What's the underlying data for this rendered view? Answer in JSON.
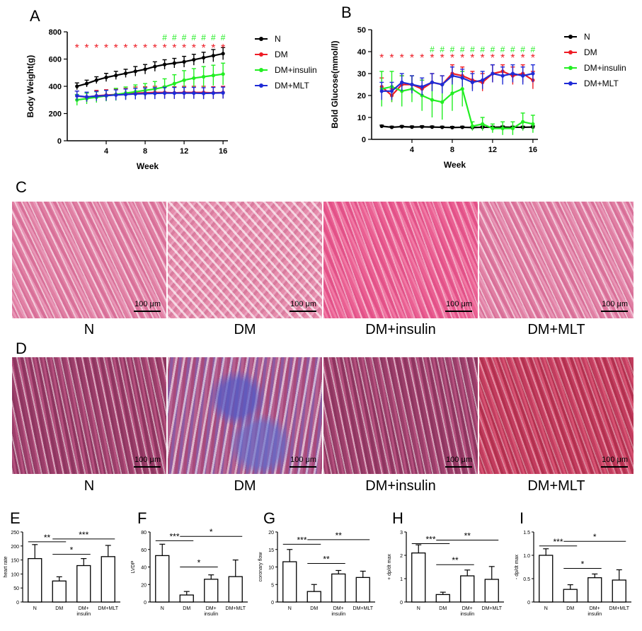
{
  "panels": {
    "A": "A",
    "B": "B",
    "C": "C",
    "D": "D",
    "E": "E",
    "F": "F",
    "G": "G",
    "H": "H",
    "I": "I"
  },
  "groups": [
    "N",
    "DM",
    "DM+insulin",
    "DM+MLT"
  ],
  "colors": {
    "N": "#000000",
    "DM": "#ee1c25",
    "DM+insulin": "#22ee22",
    "DM+MLT": "#1f2bd6"
  },
  "scale_bar_label": "100 μm",
  "chart_data": [
    {
      "type": "line",
      "id": "A",
      "xlabel": "Week",
      "ylabel": "Body Weight(g)",
      "xlim": [
        0,
        16.5
      ],
      "ylim": [
        0,
        800
      ],
      "xticks": [
        4,
        8,
        12,
        16
      ],
      "yticks": [
        0,
        200,
        400,
        600,
        800
      ],
      "x": [
        1,
        2,
        3,
        4,
        5,
        6,
        7,
        8,
        9,
        10,
        11,
        12,
        13,
        14,
        15,
        16
      ],
      "series": [
        {
          "name": "N",
          "values": [
            400,
            420,
            445,
            465,
            480,
            495,
            510,
            525,
            545,
            560,
            570,
            580,
            595,
            610,
            625,
            640
          ],
          "err": [
            25,
            25,
            25,
            30,
            30,
            30,
            35,
            35,
            35,
            35,
            35,
            40,
            40,
            40,
            45,
            45
          ]
        },
        {
          "name": "DM",
          "values": [
            330,
            320,
            330,
            335,
            340,
            345,
            350,
            352,
            355,
            355,
            352,
            355,
            355,
            355,
            352,
            355
          ],
          "err": [
            35,
            35,
            40,
            40,
            40,
            40,
            45,
            45,
            45,
            45,
            45,
            45,
            45,
            45,
            45,
            45
          ]
        },
        {
          "name": "DM+insulin",
          "values": [
            300,
            310,
            320,
            330,
            340,
            350,
            360,
            370,
            380,
            395,
            420,
            445,
            460,
            470,
            480,
            490
          ],
          "err": [
            40,
            40,
            40,
            40,
            45,
            45,
            50,
            50,
            55,
            60,
            65,
            70,
            70,
            75,
            75,
            80
          ]
        },
        {
          "name": "DM+MLT",
          "values": [
            330,
            322,
            328,
            332,
            336,
            340,
            344,
            346,
            348,
            350,
            350,
            350,
            350,
            348,
            350,
            352
          ],
          "err": [
            35,
            35,
            35,
            38,
            38,
            40,
            40,
            42,
            42,
            42,
            42,
            42,
            42,
            42,
            42,
            42
          ]
        }
      ],
      "annotations": {
        "stars": {
          "symbol": "*",
          "color": "#ee1c25",
          "weeks": [
            1,
            2,
            3,
            4,
            5,
            6,
            7,
            8,
            9,
            10,
            11,
            12,
            13,
            14,
            15,
            16
          ]
        },
        "hashes": {
          "symbol": "#",
          "color": "#22ee22",
          "weeks": [
            10,
            11,
            12,
            13,
            14,
            15,
            16
          ]
        }
      },
      "legend": "right"
    },
    {
      "type": "line",
      "id": "B",
      "xlabel": "Week",
      "ylabel": "Bold Glucose(mmol/l)",
      "xlim": [
        0,
        16.5
      ],
      "ylim": [
        0,
        50
      ],
      "xticks": [
        4,
        8,
        12,
        16
      ],
      "yticks": [
        0,
        10,
        20,
        30,
        40,
        50
      ],
      "x": [
        1,
        2,
        3,
        4,
        5,
        6,
        7,
        8,
        9,
        10,
        11,
        12,
        13,
        14,
        15,
        16
      ],
      "series": [
        {
          "name": "N",
          "values": [
            6,
            5.5,
            5.8,
            5.6,
            5.7,
            5.6,
            5.5,
            5.4,
            5.5,
            5.4,
            5.5,
            5.5,
            5.6,
            5.5,
            5.5,
            5.6
          ],
          "err": [
            0.5,
            0.5,
            0.5,
            0.5,
            0.5,
            0.5,
            0.5,
            0.5,
            0.5,
            0.5,
            0.5,
            0.5,
            0.5,
            0.5,
            0.5,
            0.5
          ]
        },
        {
          "name": "DM",
          "values": [
            24,
            20,
            25,
            25,
            23,
            26,
            25,
            30,
            29,
            27,
            26,
            30,
            31,
            29,
            30,
            27
          ],
          "err": [
            4,
            3,
            4,
            4,
            4,
            4,
            4,
            4,
            4,
            4,
            4,
            4,
            3,
            4,
            4,
            4
          ]
        },
        {
          "name": "DM+insulin",
          "values": [
            23,
            24,
            22,
            23,
            20,
            18,
            17,
            21,
            23,
            6,
            7,
            5,
            5,
            5,
            8,
            7
          ],
          "err": [
            8,
            7,
            7,
            6,
            7,
            8,
            8,
            8,
            8,
            2,
            3,
            2,
            3,
            3,
            4,
            4
          ]
        },
        {
          "name": "DM+MLT",
          "values": [
            22,
            22,
            26,
            25,
            24,
            26,
            25,
            29,
            28,
            26,
            27,
            30,
            29,
            30,
            29,
            30
          ],
          "err": [
            4,
            4,
            4,
            4,
            4,
            4,
            4,
            4,
            4,
            4,
            4,
            4,
            4,
            4,
            4,
            4
          ]
        }
      ],
      "annotations": {
        "stars": {
          "symbol": "*",
          "color": "#ee1c25",
          "weeks": [
            1,
            2,
            3,
            4,
            5,
            6,
            7,
            8,
            9,
            10,
            11,
            12,
            13,
            14,
            15,
            16
          ]
        },
        "hashes": {
          "symbol": "#",
          "color": "#22ee22",
          "weeks": [
            6,
            7,
            8,
            9,
            10,
            11,
            12,
            13,
            14,
            15,
            16
          ]
        }
      },
      "legend": "right"
    },
    {
      "type": "bar",
      "id": "E",
      "ylabel": "heart rate",
      "ylim": [
        0,
        250
      ],
      "yticks": [
        0,
        50,
        100,
        150,
        200,
        250
      ],
      "categories": [
        "N",
        "DM",
        "DM+\ninsulin",
        "DM+MLT"
      ],
      "values": [
        155,
        75,
        130,
        162
      ],
      "err": [
        50,
        15,
        25,
        40
      ],
      "significance": [
        {
          "from": 0,
          "to": 1,
          "label": "**",
          "y": 215
        },
        {
          "from": 1,
          "to": 3,
          "label": "***",
          "y": 225
        },
        {
          "from": 1,
          "to": 2,
          "label": "*",
          "y": 170
        }
      ]
    },
    {
      "type": "bar",
      "id": "F",
      "ylabel": "LVDP",
      "ylim": [
        0,
        80
      ],
      "yticks": [
        0,
        20,
        40,
        60,
        80
      ],
      "categories": [
        "N",
        "DM",
        "DM+\ninsulin",
        "DM+MLT"
      ],
      "values": [
        53,
        8,
        26,
        29
      ],
      "err": [
        13,
        4,
        5,
        19
      ],
      "significance": [
        {
          "from": 0,
          "to": 1,
          "label": "***",
          "y": 70
        },
        {
          "from": 1,
          "to": 3,
          "label": "*",
          "y": 75
        },
        {
          "from": 1,
          "to": 2,
          "label": "*",
          "y": 40
        }
      ]
    },
    {
      "type": "bar",
      "id": "G",
      "ylabel": "coronary flow",
      "ylim": [
        0,
        20
      ],
      "yticks": [
        0,
        5,
        10,
        15,
        20
      ],
      "categories": [
        "N",
        "DM",
        "DM+\ninsulin",
        "DM+MLT"
      ],
      "values": [
        11.5,
        3,
        8,
        7
      ],
      "err": [
        3.5,
        2,
        1,
        1.8
      ],
      "significance": [
        {
          "from": 0,
          "to": 1,
          "label": "***",
          "y": 16.5
        },
        {
          "from": 1,
          "to": 3,
          "label": "**",
          "y": 17.8
        },
        {
          "from": 1,
          "to": 2,
          "label": "**",
          "y": 11
        }
      ]
    },
    {
      "type": "bar",
      "id": "H",
      "ylabel": "+ dp/dt max",
      "ylim": [
        0,
        3
      ],
      "yticks": [
        0,
        1,
        2,
        3
      ],
      "categories": [
        "N",
        "DM",
        "DM+\ninsulin",
        "DM+MLT"
      ],
      "values": [
        2.1,
        0.32,
        1.12,
        0.97
      ],
      "err": [
        0.35,
        0.1,
        0.25,
        0.55
      ],
      "significance": [
        {
          "from": 0,
          "to": 1,
          "label": "***",
          "y": 2.5
        },
        {
          "from": 1,
          "to": 3,
          "label": "**",
          "y": 2.65
        },
        {
          "from": 1,
          "to": 2,
          "label": "**",
          "y": 1.6
        }
      ]
    },
    {
      "type": "bar",
      "id": "I",
      "ylabel": "- dp/dt max",
      "ylim": [
        0,
        1.5
      ],
      "yticks": [
        0,
        0.5,
        1.0,
        1.5
      ],
      "ytick_labels": [
        "0",
        "0.5",
        "1.0",
        "1.5"
      ],
      "categories": [
        "N",
        "DM",
        "DM+\ninsulin",
        "DM+MLT"
      ],
      "values": [
        1.0,
        0.27,
        0.52,
        0.47
      ],
      "err": [
        0.14,
        0.1,
        0.08,
        0.22
      ],
      "significance": [
        {
          "from": 0,
          "to": 1,
          "label": "***",
          "y": 1.2
        },
        {
          "from": 1,
          "to": 3,
          "label": "*",
          "y": 1.3
        },
        {
          "from": 1,
          "to": 2,
          "label": "*",
          "y": 0.72
        }
      ]
    }
  ]
}
